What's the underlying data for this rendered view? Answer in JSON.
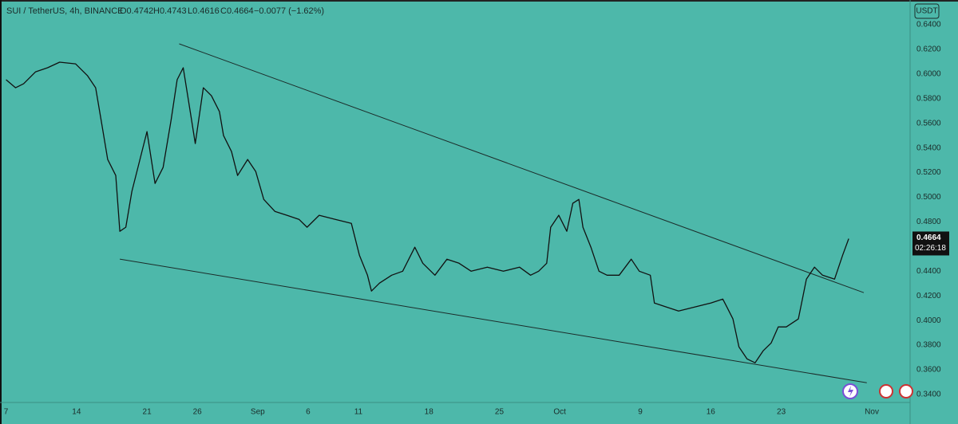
{
  "chart_data": {
    "type": "line",
    "title": "SUI / TetherUS, 4h, BINANCE",
    "ohlc": [
      "O0.4742",
      "H0.4743",
      "L0.4616",
      "C0.4664"
    ],
    "change": "−0.0077 (−1.62%)",
    "currency": "USDT",
    "last_price": {
      "value": 0.4664,
      "label": "0.4664"
    },
    "countdown": "02:26:18",
    "series": [
      {
        "color": "#111111",
        "x": [
          0,
          0.95,
          1.75,
          2.94,
          4.13,
          5.32,
          6.9,
          8.1,
          8.9,
          9.5,
          10.1,
          10.9,
          11.3,
          11.9,
          12.5,
          13.3,
          14.0,
          14.8,
          15.6,
          16.4,
          17.0,
          17.6,
          18.3,
          18.8,
          19.6,
          20.4,
          21.2,
          21.6,
          22.4,
          23.0,
          24.0,
          24.8,
          25.6,
          26.7,
          27.9,
          29.1,
          29.9,
          31.1,
          32.7,
          34.3,
          35.1,
          35.9,
          36.3,
          37.1,
          38.3,
          39.4,
          40.6,
          41.4,
          42.6,
          43.8,
          45.0,
          46.2,
          47.8,
          49.4,
          51.0,
          52.1,
          52.9,
          53.7,
          54.1,
          54.9,
          55.7,
          56.3,
          56.9,
          57.3,
          58.1,
          58.9,
          59.7,
          60.9,
          62.1,
          62.9,
          64.0,
          64.4,
          65.6,
          66.8,
          68.4,
          70.0,
          71.2,
          71.6,
          72.2,
          72.8,
          73.6,
          74.4,
          75.2,
          76.0,
          76.7,
          77.5,
          78.7,
          79.1,
          79.5,
          80.3,
          81.1,
          82.3,
          83.1,
          83.7
        ],
        "values": [
          0.5954,
          0.5889,
          0.5921,
          0.6018,
          0.6051,
          0.6096,
          0.6083,
          0.5986,
          0.5889,
          0.5598,
          0.5307,
          0.5177,
          0.4724,
          0.4757,
          0.5048,
          0.5307,
          0.5533,
          0.5112,
          0.5242,
          0.563,
          0.5954,
          0.6051,
          0.5695,
          0.5436,
          0.5889,
          0.5824,
          0.5695,
          0.5501,
          0.5371,
          0.5177,
          0.5307,
          0.521,
          0.4983,
          0.4886,
          0.4854,
          0.4821,
          0.4757,
          0.4854,
          0.4821,
          0.4789,
          0.453,
          0.4368,
          0.4239,
          0.4304,
          0.4368,
          0.44,
          0.4595,
          0.4465,
          0.4368,
          0.4498,
          0.4465,
          0.44,
          0.4433,
          0.44,
          0.4433,
          0.4368,
          0.44,
          0.4465,
          0.4757,
          0.4854,
          0.4724,
          0.4951,
          0.4983,
          0.4757,
          0.4595,
          0.44,
          0.4368,
          0.4368,
          0.4498,
          0.44,
          0.4368,
          0.4142,
          0.411,
          0.4077,
          0.411,
          0.4142,
          0.4174,
          0.411,
          0.4013,
          0.3786,
          0.3689,
          0.3657,
          0.3754,
          0.3818,
          0.3948,
          0.3948,
          0.4013,
          0.4174,
          0.4336,
          0.4433,
          0.4368,
          0.4336,
          0.453,
          0.4664
        ]
      }
    ],
    "annotations": [
      {
        "x": [
          17.2,
          85.2
        ],
        "y": [
          0.6245,
          0.4226
        ]
      },
      {
        "x": [
          11.3,
          85.5
        ],
        "y": [
          0.4498,
          0.3495
        ]
      }
    ],
    "xlim": [
      -0.6,
      89.8
    ],
    "ylim": [
      0.3335,
      0.6536
    ],
    "xticks": [
      {
        "value": 0,
        "label": "7"
      },
      {
        "value": 7,
        "label": "14"
      },
      {
        "value": 14,
        "label": "21"
      },
      {
        "value": 19,
        "label": "26"
      },
      {
        "value": 25,
        "label": "Sep"
      },
      {
        "value": 30,
        "label": "6"
      },
      {
        "value": 35,
        "label": "11"
      },
      {
        "value": 42,
        "label": "18"
      },
      {
        "value": 49,
        "label": "25"
      },
      {
        "value": 55,
        "label": "Oct"
      },
      {
        "value": 63,
        "label": "9"
      },
      {
        "value": 70,
        "label": "16"
      },
      {
        "value": 77,
        "label": "23"
      },
      {
        "value": 86,
        "label": "Nov"
      }
    ],
    "yticks": [
      {
        "value": 0.64,
        "label": "0.6400"
      },
      {
        "value": 0.62,
        "label": "0.6200"
      },
      {
        "value": 0.6,
        "label": "0.6000"
      },
      {
        "value": 0.58,
        "label": "0.5800"
      },
      {
        "value": 0.56,
        "label": "0.5600"
      },
      {
        "value": 0.54,
        "label": "0.5400"
      },
      {
        "value": 0.52,
        "label": "0.5200"
      },
      {
        "value": 0.5,
        "label": "0.5000"
      },
      {
        "value": 0.48,
        "label": "0.4800"
      },
      {
        "value": 0.46,
        "label": "0.4600"
      },
      {
        "value": 0.44,
        "label": "0.4400"
      },
      {
        "value": 0.42,
        "label": "0.4200"
      },
      {
        "value": 0.4,
        "label": "0.4000"
      },
      {
        "value": 0.38,
        "label": "0.3800"
      },
      {
        "value": 0.36,
        "label": "0.3600"
      },
      {
        "value": 0.34,
        "label": "0.3400"
      }
    ],
    "grid": false
  }
}
